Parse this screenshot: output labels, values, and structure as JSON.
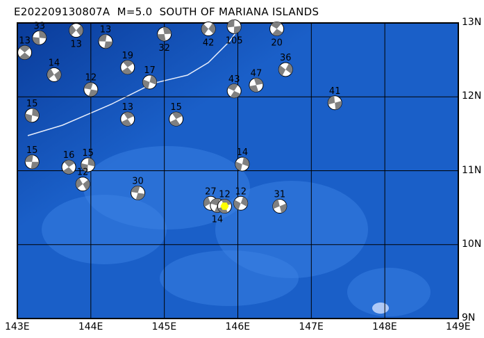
{
  "title": "E202209130807A  M=5.0  SOUTH OF MARIANA ISLANDS",
  "map": {
    "lon_range": [
      143,
      149
    ],
    "lat_range": [
      9,
      13
    ],
    "x_ticks": [
      "143E",
      "144E",
      "145E",
      "146E",
      "147E",
      "148E",
      "149E"
    ],
    "y_ticks": [
      "13N",
      "12N",
      "11N",
      "10N",
      "9N"
    ],
    "ocean_color": "#1a5fc8",
    "deep_color": "#0a3c9a",
    "shallow_color": "#3d86e6",
    "ball_color": "#808080",
    "epicenter_color": "#ffff00",
    "epicenter": {
      "lon": 145.82,
      "lat": 10.52
    },
    "events": [
      {
        "lon": 143.2,
        "lat": 11.12,
        "depth": "15"
      },
      {
        "lon": 143.7,
        "lat": 11.05,
        "depth": "16"
      },
      {
        "lon": 143.96,
        "lat": 11.08,
        "depth": "15"
      },
      {
        "lon": 143.89,
        "lat": 10.82,
        "depth": "12"
      },
      {
        "lon": 144.64,
        "lat": 10.7,
        "depth": "30"
      },
      {
        "lon": 145.16,
        "lat": 11.7,
        "depth": "15"
      },
      {
        "lon": 146.06,
        "lat": 11.09,
        "depth": "14"
      },
      {
        "lon": 145.63,
        "lat": 10.56,
        "depth": "27"
      },
      {
        "lon": 145.72,
        "lat": 10.53,
        "depth": "14"
      },
      {
        "lon": 145.82,
        "lat": 10.52,
        "depth": "12"
      },
      {
        "lon": 146.04,
        "lat": 10.56,
        "depth": "12"
      },
      {
        "lon": 146.57,
        "lat": 10.52,
        "depth": "31"
      },
      {
        "lon": 145.95,
        "lat": 12.08,
        "depth": "43"
      },
      {
        "lon": 146.25,
        "lat": 12.16,
        "depth": "47"
      },
      {
        "lon": 146.65,
        "lat": 12.37,
        "depth": "36"
      },
      {
        "lon": 147.32,
        "lat": 11.92,
        "depth": "41"
      },
      {
        "lon": 146.53,
        "lat": 12.92,
        "depth": "20"
      },
      {
        "lon": 145.0,
        "lat": 12.85,
        "depth": "32"
      },
      {
        "lon": 145.6,
        "lat": 12.92,
        "depth": "42"
      },
      {
        "lon": 145.95,
        "lat": 12.95,
        "depth": "105"
      },
      {
        "lon": 143.1,
        "lat": 12.6,
        "depth": "13"
      },
      {
        "lon": 143.3,
        "lat": 12.8,
        "depth": "33"
      },
      {
        "lon": 143.8,
        "lat": 12.9,
        "depth": "13"
      },
      {
        "lon": 144.2,
        "lat": 12.75,
        "depth": "13"
      },
      {
        "lon": 144.5,
        "lat": 12.4,
        "depth": "19"
      },
      {
        "lon": 143.2,
        "lat": 11.75,
        "depth": "15"
      },
      {
        "lon": 143.5,
        "lat": 12.3,
        "depth": "14"
      },
      {
        "lon": 144.0,
        "lat": 12.1,
        "depth": "12"
      },
      {
        "lon": 144.5,
        "lat": 11.7,
        "depth": "13"
      },
      {
        "lon": 144.8,
        "lat": 12.2,
        "depth": "17"
      }
    ]
  }
}
